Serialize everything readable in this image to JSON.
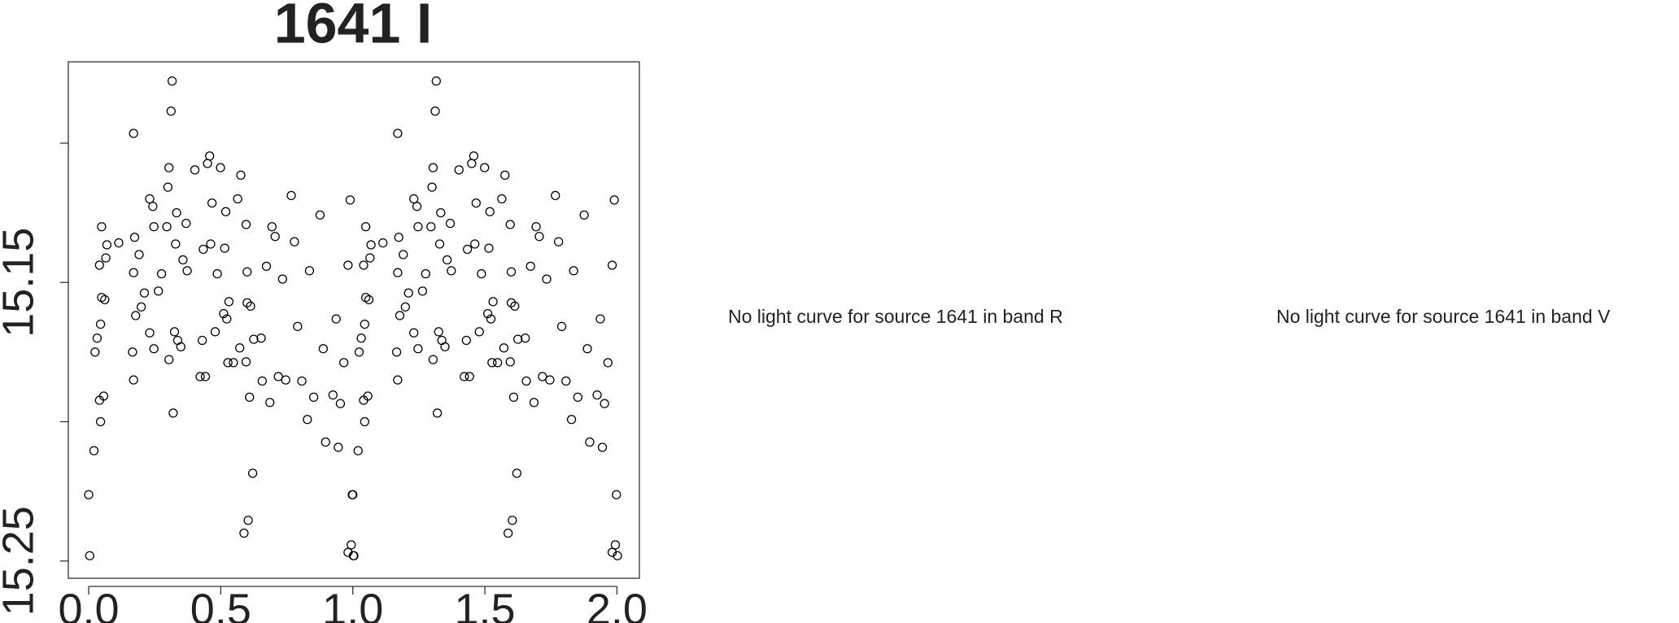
{
  "chart_data": {
    "type": "scatter",
    "title": "1641 I",
    "xlim": [
      -0.077,
      2.085
    ],
    "xticks": [
      {
        "value": 0,
        "label": "0.0"
      },
      0.5,
      {
        "value": 1,
        "label": "1.0"
      },
      1.5,
      {
        "value": 2,
        "label": "2.0"
      }
    ],
    "ylim": [
      15.2562,
      15.0708
    ],
    "yticks": [
      15.15,
      15.25
    ],
    "yticks_minor": [
      15.1,
      15.2
    ],
    "color": "#000000",
    "x": [
      0,
      0.004,
      0.02,
      0.024,
      0.032,
      0.041,
      0.041,
      0.045,
      0.045,
      0.049,
      0.049,
      0.057,
      0.061,
      0.065,
      0.069,
      0.114,
      0.17,
      0.166,
      0.17,
      0.17,
      0.174,
      0.178,
      0.191,
      0.199,
      0.211,
      0.231,
      0.231,
      0.243,
      0.247,
      0.247,
      0.264,
      0.276,
      0.296,
      0.3,
      0.304,
      0.304,
      0.312,
      0.316,
      0.32,
      0.325,
      0.329,
      0.333,
      0.337,
      0.349,
      0.357,
      0.369,
      0.373,
      0.402,
      0.422,
      0.43,
      0.434,
      0.442,
      0.45,
      0.458,
      0.462,
      0.467,
      0.479,
      0.487,
      0.499,
      0.511,
      0.515,
      0.519,
      0.523,
      0.527,
      0.531,
      0.548,
      0.564,
      0.572,
      0.576,
      0.588,
      0.596,
      0.596,
      0.6,
      0.6,
      0.604,
      0.609,
      0.613,
      0.621,
      0.625,
      0.653,
      0.657,
      0.673,
      0.686,
      0.694,
      0.706,
      0.718,
      0.734,
      0.746,
      0.767,
      0.779,
      0.791,
      0.807,
      0.828,
      0.836,
      0.852,
      0.876,
      0.888,
      0.897,
      0.925,
      0.937,
      0.945,
      0.953,
      0.966,
      0.982,
      0.99,
      0.998,
      1.002,
      0.994,
      0.982,
      1,
      1.004,
      1.02,
      1.024,
      1.032,
      1.041,
      1.041,
      1.045,
      1.045,
      1.049,
      1.049,
      1.057,
      1.061,
      1.065,
      1.069,
      1.114,
      1.17,
      1.166,
      1.17,
      1.17,
      1.174,
      1.178,
      1.191,
      1.199,
      1.211,
      1.231,
      1.231,
      1.243,
      1.247,
      1.247,
      1.264,
      1.276,
      1.296,
      1.3,
      1.304,
      1.304,
      1.312,
      1.316,
      1.32,
      1.325,
      1.329,
      1.333,
      1.337,
      1.349,
      1.357,
      1.369,
      1.373,
      1.402,
      1.422,
      1.43,
      1.434,
      1.442,
      1.45,
      1.458,
      1.462,
      1.467,
      1.479,
      1.487,
      1.499,
      1.511,
      1.515,
      1.519,
      1.523,
      1.527,
      1.531,
      1.548,
      1.564,
      1.572,
      1.576,
      1.588,
      1.596,
      1.596,
      1.6,
      1.6,
      1.604,
      1.609,
      1.613,
      1.621,
      1.625,
      1.653,
      1.657,
      1.673,
      1.686,
      1.694,
      1.706,
      1.718,
      1.734,
      1.746,
      1.767,
      1.779,
      1.791,
      1.807,
      1.828,
      1.836,
      1.852,
      1.876,
      1.888,
      1.897,
      1.925,
      1.937,
      1.945,
      1.953,
      1.966,
      1.982,
      1.99,
      1.998,
      2.002,
      1.994,
      1.982
    ],
    "values": [
      15.2262,
      15.2481,
      15.2104,
      15.175,
      15.17,
      15.1438,
      15.1923,
      15.2,
      15.165,
      15.13,
      15.1554,
      15.1908,
      15.1562,
      15.1412,
      15.1365,
      15.1358,
      15.0965,
      15.175,
      15.185,
      15.1465,
      15.1338,
      15.1619,
      15.14,
      15.1588,
      15.1538,
      15.12,
      15.1681,
      15.1227,
      15.13,
      15.1738,
      15.1531,
      15.1469,
      15.13,
      15.1158,
      15.1777,
      15.1088,
      15.0885,
      15.0777,
      15.1969,
      15.1677,
      15.1362,
      15.125,
      15.1708,
      15.1731,
      15.1419,
      15.1288,
      15.1458,
      15.1096,
      15.1838,
      15.1708,
      15.1381,
      15.1838,
      15.1073,
      15.1046,
      15.1362,
      15.1215,
      15.1677,
      15.1469,
      15.1088,
      15.1612,
      15.1377,
      15.1246,
      15.1631,
      15.1788,
      15.1569,
      15.1788,
      15.12,
      15.1735,
      15.1115,
      15.24,
      15.1292,
      15.1785,
      15.1462,
      15.1573,
      15.2354,
      15.1912,
      15.1585,
      15.2185,
      15.1704,
      15.17,
      15.1854,
      15.1442,
      15.1931,
      15.13,
      15.1335,
      15.1838,
      15.1488,
      15.185,
      15.1188,
      15.1354,
      15.1658,
      15.1854,
      15.1992,
      15.1458,
      15.1912,
      15.1258,
      15.1738,
      15.2073,
      15.1904,
      15.1631,
      15.2092,
      15.1935,
      15.1788,
      15.1438,
      15.1204,
      15.2262,
      15.2481,
      15.2442,
      15.2469,
      15.2262,
      15.2481,
      15.2104,
      15.175,
      15.17,
      15.1438,
      15.1923,
      15.2,
      15.165,
      15.13,
      15.1554,
      15.1908,
      15.1562,
      15.1412,
      15.1365,
      15.1358,
      15.0965,
      15.175,
      15.185,
      15.1465,
      15.1338,
      15.1619,
      15.14,
      15.1588,
      15.1538,
      15.12,
      15.1681,
      15.1227,
      15.13,
      15.1738,
      15.1531,
      15.1469,
      15.13,
      15.1158,
      15.1777,
      15.1088,
      15.0885,
      15.0777,
      15.1969,
      15.1677,
      15.1362,
      15.125,
      15.1708,
      15.1731,
      15.1419,
      15.1288,
      15.1458,
      15.1096,
      15.1838,
      15.1708,
      15.1381,
      15.1838,
      15.1073,
      15.1046,
      15.1362,
      15.1215,
      15.1677,
      15.1469,
      15.1088,
      15.1612,
      15.1377,
      15.1246,
      15.1631,
      15.1788,
      15.1569,
      15.1788,
      15.12,
      15.1735,
      15.1115,
      15.24,
      15.1292,
      15.1785,
      15.1462,
      15.1573,
      15.2354,
      15.1912,
      15.1585,
      15.2185,
      15.1704,
      15.17,
      15.1854,
      15.1442,
      15.1931,
      15.13,
      15.1335,
      15.1838,
      15.1488,
      15.185,
      15.1188,
      15.1354,
      15.1658,
      15.1854,
      15.1992,
      15.1458,
      15.1912,
      15.1258,
      15.1738,
      15.2073,
      15.1904,
      15.1631,
      15.2092,
      15.1935,
      15.1788,
      15.1438,
      15.1204,
      15.2262,
      15.2481,
      15.2442,
      15.2469
    ],
    "annotations": [
      "No light curve for source 1641 in band R",
      "No light curve for source 1641 in band V"
    ]
  }
}
